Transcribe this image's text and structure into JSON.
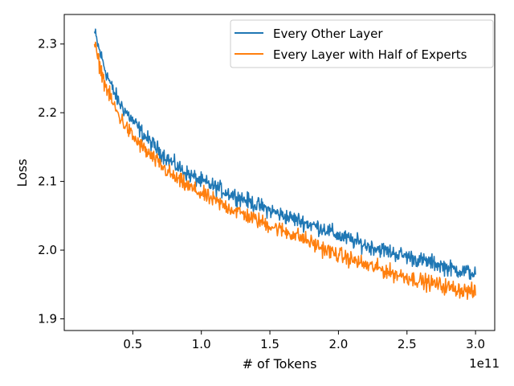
{
  "chart_data": {
    "type": "line",
    "xlabel": "# of Tokens",
    "ylabel": "Loss",
    "x_offset_label": "1e11",
    "xlim": [
      0.0,
      3.14
    ],
    "ylim": [
      1.883,
      2.343
    ],
    "x_ticks": [
      0.5,
      1.0,
      1.5,
      2.0,
      2.5,
      3.0
    ],
    "x_tick_labels": [
      "0.5",
      "1.0",
      "1.5",
      "2.0",
      "2.5",
      "3.0"
    ],
    "y_ticks": [
      1.9,
      2.0,
      2.1,
      2.2,
      2.3
    ],
    "y_tick_labels": [
      "1.9",
      "2.0",
      "2.1",
      "2.2",
      "2.3"
    ],
    "grid": false,
    "legend_position": "top-right",
    "series": [
      {
        "name": "Every Other Layer",
        "color": "#1f77b4",
        "x": [
          0.22,
          0.25,
          0.3,
          0.35,
          0.4,
          0.5,
          0.6,
          0.7,
          0.8,
          0.9,
          1.0,
          1.1,
          1.2,
          1.3,
          1.4,
          1.5,
          1.6,
          1.7,
          1.8,
          1.9,
          2.0,
          2.1,
          2.2,
          2.3,
          2.4,
          2.5,
          2.6,
          2.7,
          2.8,
          2.9,
          3.0
        ],
        "y": [
          2.318,
          2.295,
          2.262,
          2.235,
          2.215,
          2.188,
          2.163,
          2.143,
          2.125,
          2.111,
          2.1,
          2.092,
          2.083,
          2.075,
          2.066,
          2.058,
          2.05,
          2.044,
          2.037,
          2.031,
          2.021,
          2.014,
          2.007,
          2.002,
          1.996,
          1.991,
          1.985,
          1.981,
          1.974,
          1.97,
          1.966
        ]
      },
      {
        "name": "Every Layer with Half of Experts",
        "color": "#ff7f0e",
        "x": [
          0.22,
          0.25,
          0.3,
          0.35,
          0.4,
          0.5,
          0.6,
          0.7,
          0.8,
          0.9,
          1.0,
          1.1,
          1.2,
          1.3,
          1.4,
          1.5,
          1.6,
          1.7,
          1.8,
          1.9,
          2.0,
          2.1,
          2.2,
          2.3,
          2.4,
          2.5,
          2.6,
          2.7,
          2.8,
          2.9,
          3.0
        ],
        "y": [
          2.3,
          2.275,
          2.24,
          2.215,
          2.195,
          2.165,
          2.143,
          2.124,
          2.106,
          2.093,
          2.082,
          2.071,
          2.062,
          2.053,
          2.044,
          2.036,
          2.028,
          2.021,
          2.011,
          2.001,
          1.993,
          1.986,
          1.978,
          1.973,
          1.966,
          1.961,
          1.955,
          1.951,
          1.946,
          1.942,
          1.938
        ]
      }
    ]
  }
}
